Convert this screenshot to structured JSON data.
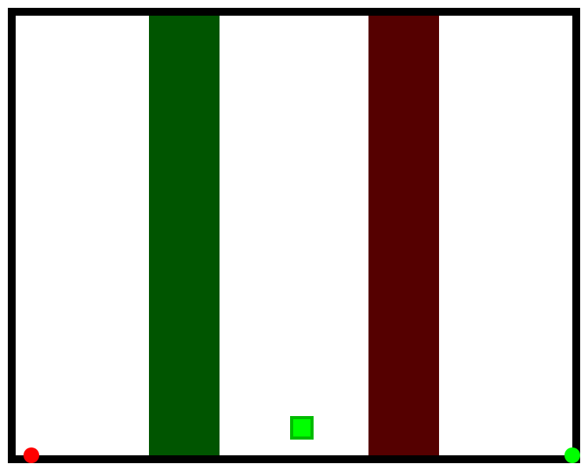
{
  "game": {
    "colors": {
      "wall": "#000000",
      "floor": "#ffffff",
      "safe_zone": "#005500",
      "danger_zone": "#550000",
      "player_fill": "#00ff00",
      "player_border": "#00bb00",
      "start_marker": "#ff0000",
      "goal_marker": "#00ff00"
    },
    "zones": [
      {
        "kind": "green-zone",
        "color": "#005500"
      },
      {
        "kind": "red-zone",
        "color": "#550000"
      }
    ],
    "player": {
      "shape": "square",
      "icon": "player-square-icon"
    },
    "markers": {
      "start": {
        "shape": "circle",
        "icon": "start-dot-icon"
      },
      "goal": {
        "shape": "circle",
        "icon": "goal-dot-icon"
      }
    }
  }
}
